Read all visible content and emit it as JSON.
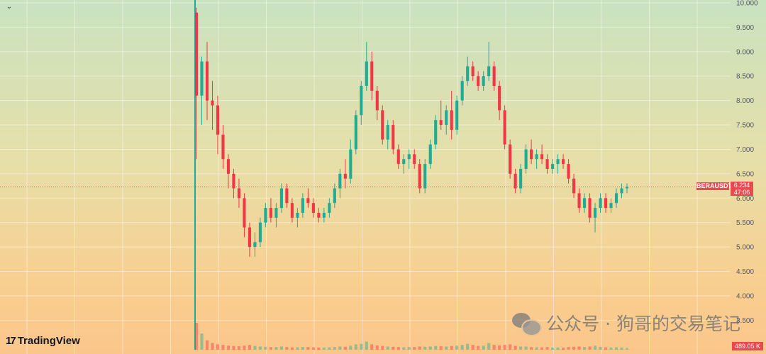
{
  "chart_data": {
    "type": "candlestick",
    "symbol": "BERAUSDT",
    "last_price": "6.234",
    "countdown": "47:06",
    "volume_label": "489.05 K",
    "ylim": [
      3.2,
      10.0
    ],
    "yticks": [
      "10.000",
      "9.500",
      "9.000",
      "8.500",
      "8.000",
      "7.500",
      "7.000",
      "6.500",
      "6.000",
      "5.500",
      "5.000",
      "4.500",
      "4.000",
      "3.500"
    ],
    "ytick_values": [
      10.0,
      9.5,
      9.0,
      8.5,
      8.0,
      7.5,
      7.0,
      6.5,
      6.0,
      5.5,
      5.0,
      4.5,
      4.0,
      3.5
    ],
    "candles": [
      [
        9.8,
        9.9,
        6.8,
        8.1
      ],
      [
        8.1,
        8.9,
        7.5,
        8.8
      ],
      [
        8.8,
        9.2,
        7.6,
        8.0
      ],
      [
        8.0,
        8.4,
        7.4,
        7.9
      ],
      [
        7.9,
        8.1,
        6.9,
        7.3
      ],
      [
        7.3,
        7.5,
        6.6,
        6.8
      ],
      [
        6.8,
        6.9,
        6.2,
        6.5
      ],
      [
        6.5,
        6.6,
        6.0,
        6.2
      ],
      [
        6.2,
        6.4,
        5.8,
        6.0
      ],
      [
        6.0,
        6.1,
        5.2,
        5.4
      ],
      [
        5.4,
        5.5,
        4.8,
        5.0
      ],
      [
        5.0,
        5.3,
        4.8,
        5.1
      ],
      [
        5.1,
        5.6,
        5.0,
        5.5
      ],
      [
        5.5,
        5.9,
        5.4,
        5.8
      ],
      [
        5.8,
        6.0,
        5.5,
        5.6
      ],
      [
        5.6,
        5.9,
        5.4,
        5.8
      ],
      [
        5.8,
        6.3,
        5.7,
        6.2
      ],
      [
        6.2,
        6.3,
        5.8,
        5.9
      ],
      [
        5.9,
        6.0,
        5.5,
        5.6
      ],
      [
        5.6,
        5.8,
        5.4,
        5.7
      ],
      [
        5.7,
        6.1,
        5.6,
        6.0
      ],
      [
        6.0,
        6.2,
        5.8,
        5.9
      ],
      [
        5.9,
        6.0,
        5.6,
        5.7
      ],
      [
        5.7,
        5.8,
        5.5,
        5.6
      ],
      [
        5.6,
        5.8,
        5.5,
        5.7
      ],
      [
        5.7,
        6.0,
        5.6,
        5.9
      ],
      [
        5.9,
        6.3,
        5.8,
        6.2
      ],
      [
        6.2,
        6.6,
        6.0,
        6.5
      ],
      [
        6.5,
        6.8,
        6.2,
        6.4
      ],
      [
        6.4,
        7.2,
        6.3,
        7.0
      ],
      [
        7.0,
        7.8,
        6.9,
        7.7
      ],
      [
        7.7,
        8.4,
        7.5,
        8.3
      ],
      [
        8.3,
        9.2,
        8.2,
        8.8
      ],
      [
        8.8,
        9.0,
        8.0,
        8.2
      ],
      [
        8.2,
        8.3,
        7.6,
        7.8
      ],
      [
        7.8,
        7.9,
        7.1,
        7.2
      ],
      [
        7.2,
        7.6,
        7.0,
        7.5
      ],
      [
        7.5,
        7.6,
        6.9,
        7.0
      ],
      [
        7.0,
        7.1,
        6.6,
        6.7
      ],
      [
        6.7,
        6.9,
        6.5,
        6.8
      ],
      [
        6.8,
        7.0,
        6.6,
        6.9
      ],
      [
        6.9,
        7.0,
        6.6,
        6.7
      ],
      [
        6.7,
        6.8,
        6.1,
        6.2
      ],
      [
        6.2,
        6.8,
        6.1,
        6.7
      ],
      [
        6.7,
        7.2,
        6.6,
        7.1
      ],
      [
        7.1,
        7.7,
        7.0,
        7.6
      ],
      [
        7.6,
        8.0,
        7.4,
        7.5
      ],
      [
        7.5,
        7.9,
        7.3,
        7.8
      ],
      [
        7.8,
        8.2,
        7.2,
        7.4
      ],
      [
        7.4,
        8.1,
        7.3,
        8.0
      ],
      [
        8.0,
        8.5,
        7.9,
        8.4
      ],
      [
        8.4,
        8.9,
        8.3,
        8.7
      ],
      [
        8.7,
        8.8,
        8.4,
        8.5
      ],
      [
        8.5,
        8.6,
        8.2,
        8.3
      ],
      [
        8.3,
        8.6,
        8.2,
        8.5
      ],
      [
        8.5,
        9.2,
        8.4,
        8.7
      ],
      [
        8.7,
        8.8,
        8.2,
        8.3
      ],
      [
        8.3,
        8.4,
        7.6,
        7.8
      ],
      [
        7.8,
        7.9,
        7.0,
        7.1
      ],
      [
        7.1,
        7.2,
        6.4,
        6.5
      ],
      [
        6.5,
        6.6,
        6.1,
        6.2
      ],
      [
        6.2,
        6.7,
        6.1,
        6.6
      ],
      [
        6.6,
        7.1,
        6.5,
        7.0
      ],
      [
        7.0,
        7.2,
        6.7,
        6.8
      ],
      [
        6.8,
        7.0,
        6.6,
        6.9
      ],
      [
        6.9,
        7.1,
        6.7,
        6.8
      ],
      [
        6.8,
        6.9,
        6.5,
        6.6
      ],
      [
        6.6,
        6.8,
        6.5,
        6.7
      ],
      [
        6.7,
        6.9,
        6.5,
        6.8
      ],
      [
        6.8,
        6.9,
        6.6,
        6.7
      ],
      [
        6.7,
        6.8,
        6.3,
        6.4
      ],
      [
        6.4,
        6.5,
        6.0,
        6.1
      ],
      [
        6.1,
        6.2,
        5.7,
        5.8
      ],
      [
        5.8,
        6.1,
        5.7,
        6.0
      ],
      [
        6.0,
        6.1,
        5.5,
        5.6
      ],
      [
        5.6,
        5.9,
        5.3,
        5.8
      ],
      [
        5.8,
        6.1,
        5.7,
        6.0
      ],
      [
        6.0,
        6.1,
        5.7,
        5.8
      ],
      [
        5.8,
        6.0,
        5.7,
        5.9
      ],
      [
        5.9,
        6.2,
        5.8,
        6.1
      ],
      [
        6.1,
        6.3,
        6.0,
        6.2
      ],
      [
        6.2,
        6.3,
        6.1,
        6.23
      ]
    ],
    "volumes": [
      1.0,
      0.6,
      0.35,
      0.25,
      0.2,
      0.18,
      0.15,
      0.14,
      0.13,
      0.15,
      0.18,
      0.14,
      0.12,
      0.11,
      0.1,
      0.1,
      0.12,
      0.1,
      0.09,
      0.09,
      0.1,
      0.1,
      0.09,
      0.08,
      0.08,
      0.09,
      0.1,
      0.12,
      0.11,
      0.15,
      0.2,
      0.22,
      0.3,
      0.2,
      0.16,
      0.14,
      0.12,
      0.11,
      0.1,
      0.09,
      0.1,
      0.1,
      0.12,
      0.11,
      0.12,
      0.14,
      0.13,
      0.12,
      0.14,
      0.15,
      0.18,
      0.22,
      0.18,
      0.14,
      0.15,
      0.25,
      0.18,
      0.16,
      0.18,
      0.2,
      0.14,
      0.12,
      0.12,
      0.1,
      0.09,
      0.09,
      0.1,
      0.08,
      0.08,
      0.08,
      0.1,
      0.11,
      0.12,
      0.1,
      0.12,
      0.15,
      0.11,
      0.09,
      0.08,
      0.09,
      0.08,
      0.07
    ],
    "colors": {
      "up": "#22ab94",
      "down": "#f23645",
      "axis_label_bg": "#e84a4f",
      "price_line": "#e84a4f"
    }
  },
  "branding": {
    "logo_mark": "17",
    "logo_text": "TradingView"
  },
  "watermark": {
    "text": "公众号 · 狗哥的交易笔记"
  },
  "controls": {
    "collapse_icon": "⌄"
  }
}
